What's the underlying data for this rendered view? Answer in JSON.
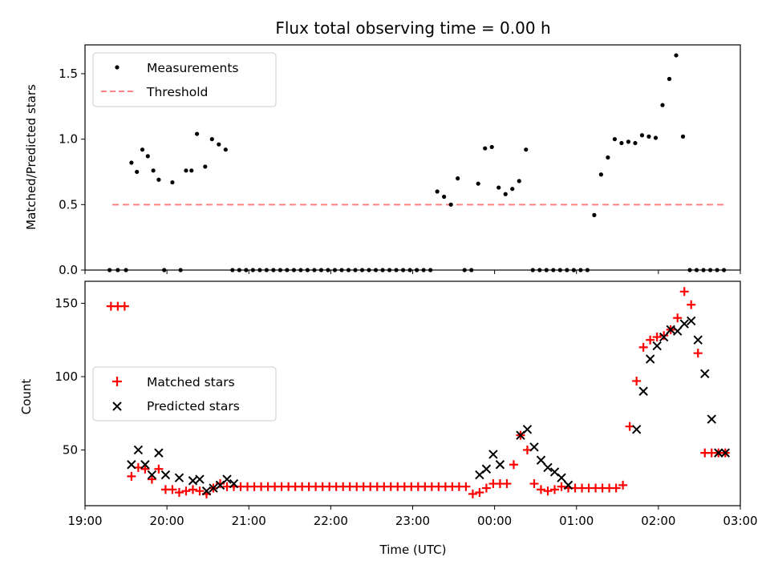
{
  "chart_data": [
    {
      "type": "scatter",
      "title": "Flux total observing time = 0.00 h",
      "xlabel": "",
      "ylabel": "Matched/Predicted stars",
      "xlim": [
        "19:00",
        "03:00"
      ],
      "ylim": [
        0.0,
        1.72
      ],
      "x_ticks": [
        "19:00",
        "20:00",
        "21:00",
        "22:00",
        "23:00",
        "00:00",
        "01:00",
        "02:00",
        "03:00"
      ],
      "y_ticks": [
        "0.0",
        "0.5",
        "1.0",
        "1.5"
      ],
      "legend": {
        "position": "upper-left"
      },
      "series": [
        {
          "name": "Measurements",
          "color": "#000000",
          "marker": "dot",
          "x": [
            "19:18",
            "19:24",
            "19:30",
            "19:34",
            "19:38",
            "19:42",
            "19:46",
            "19:50",
            "19:54",
            "19:58",
            "20:04",
            "20:10",
            "20:14",
            "20:18",
            "20:22",
            "20:28",
            "20:33",
            "20:38",
            "20:43",
            "20:48",
            "20:53",
            "20:58",
            "21:03",
            "21:08",
            "21:13",
            "21:18",
            "21:23",
            "21:28",
            "21:33",
            "21:38",
            "21:43",
            "21:48",
            "21:53",
            "21:58",
            "22:03",
            "22:08",
            "22:13",
            "22:18",
            "22:23",
            "22:28",
            "22:33",
            "22:38",
            "22:43",
            "22:48",
            "22:53",
            "22:58",
            "23:03",
            "23:08",
            "23:13",
            "23:18",
            "23:23",
            "23:28",
            "23:33",
            "23:38",
            "23:43",
            "23:48",
            "23:53",
            "23:58",
            "00:03",
            "00:08",
            "00:13",
            "00:18",
            "00:23",
            "00:28",
            "00:33",
            "00:38",
            "00:43",
            "00:48",
            "00:53",
            "00:58",
            "01:03",
            "01:08",
            "01:13",
            "01:18",
            "01:23",
            "01:28",
            "01:33",
            "01:38",
            "01:43",
            "01:48",
            "01:53",
            "01:58",
            "02:03",
            "02:08",
            "02:13",
            "02:18",
            "02:23",
            "02:28",
            "02:33",
            "02:38",
            "02:43",
            "02:48"
          ],
          "y": [
            0,
            0,
            0,
            0.82,
            0.75,
            0.92,
            0.87,
            0.76,
            0.69,
            0,
            0.67,
            0,
            0.76,
            0.76,
            1.04,
            0.79,
            1.0,
            0.96,
            0.92,
            0,
            0,
            0,
            0,
            0,
            0,
            0,
            0,
            0,
            0,
            0,
            0,
            0,
            0,
            0,
            0,
            0,
            0,
            0,
            0,
            0,
            0,
            0,
            0,
            0,
            0,
            0,
            0,
            0,
            0,
            0.6,
            0.56,
            0.5,
            0.7,
            0,
            0,
            0.66,
            0.93,
            0.94,
            0.63,
            0.58,
            0.62,
            0.68,
            0.92,
            0,
            0,
            0,
            0,
            0,
            0,
            0,
            0,
            0,
            0.42,
            0.73,
            0.86,
            1.0,
            0.97,
            0.98,
            0.97,
            1.03,
            1.02,
            1.01,
            1.26,
            1.46,
            1.64,
            1.02,
            0,
            0,
            0,
            0,
            0,
            0
          ]
        },
        {
          "name": "Threshold",
          "color": "#ff8080",
          "style": "dashed",
          "x": [
            "19:20",
            "02:48"
          ],
          "y": [
            0.5,
            0.5
          ]
        }
      ]
    },
    {
      "type": "scatter",
      "title": "",
      "xlabel": "Time (UTC)",
      "ylabel": "Count",
      "xlim": [
        "19:00",
        "03:00"
      ],
      "ylim": [
        12,
        165
      ],
      "x_ticks": [
        "19:00",
        "20:00",
        "21:00",
        "22:00",
        "23:00",
        "00:00",
        "01:00",
        "02:00",
        "03:00"
      ],
      "y_ticks": [
        "50",
        "100",
        "150"
      ],
      "legend": {
        "position": "center-left"
      },
      "series": [
        {
          "name": "Matched stars",
          "color": "#ff0000",
          "marker": "plus",
          "x": [
            "19:19",
            "19:24",
            "19:29",
            "19:34",
            "19:39",
            "19:44",
            "19:49",
            "19:54",
            "19:59",
            "20:04",
            "20:09",
            "20:14",
            "20:19",
            "20:24",
            "20:29",
            "20:34",
            "20:39",
            "20:44",
            "20:49",
            "20:54",
            "20:59",
            "21:04",
            "21:09",
            "21:14",
            "21:19",
            "21:24",
            "21:29",
            "21:34",
            "21:39",
            "21:44",
            "21:49",
            "21:54",
            "21:59",
            "22:04",
            "22:09",
            "22:14",
            "22:19",
            "22:24",
            "22:29",
            "22:34",
            "22:39",
            "22:44",
            "22:49",
            "22:54",
            "22:59",
            "23:04",
            "23:09",
            "23:14",
            "23:19",
            "23:24",
            "23:29",
            "23:34",
            "23:39",
            "23:44",
            "23:49",
            "23:54",
            "23:59",
            "00:04",
            "00:09",
            "00:14",
            "00:19",
            "00:24",
            "00:29",
            "00:34",
            "00:39",
            "00:44",
            "00:49",
            "00:54",
            "00:59",
            "01:04",
            "01:09",
            "01:14",
            "01:19",
            "01:24",
            "01:29",
            "01:34",
            "01:39",
            "01:44",
            "01:49",
            "01:54",
            "01:59",
            "02:04",
            "02:09",
            "02:14",
            "02:19",
            "02:24",
            "02:29",
            "02:34",
            "02:39",
            "02:44",
            "02:49"
          ],
          "y": [
            148,
            148,
            148,
            32,
            38,
            37,
            30,
            37,
            23,
            23,
            21,
            22,
            23,
            22,
            20,
            24,
            27,
            25,
            25,
            25,
            25,
            25,
            25,
            25,
            25,
            25,
            25,
            25,
            25,
            25,
            25,
            25,
            25,
            25,
            25,
            25,
            25,
            25,
            25,
            25,
            25,
            25,
            25,
            25,
            25,
            25,
            25,
            25,
            25,
            25,
            25,
            25,
            25,
            20,
            21,
            24,
            27,
            27,
            27,
            40,
            60,
            50,
            27,
            23,
            22,
            23,
            25,
            24,
            24,
            24,
            24,
            24,
            24,
            24,
            24,
            26,
            66,
            97,
            120,
            125,
            127,
            128,
            132,
            140,
            158,
            149,
            116,
            48,
            48,
            48,
            48
          ]
        },
        {
          "name": "Predicted stars",
          "color": "#000000",
          "marker": "x",
          "x": [
            "19:34",
            "19:39",
            "19:44",
            "19:49",
            "19:54",
            "19:59",
            "20:09",
            "20:19",
            "20:24",
            "20:29",
            "20:34",
            "20:39",
            "20:44",
            "20:49",
            "23:49",
            "23:54",
            "23:59",
            "00:04",
            "00:19",
            "00:24",
            "00:29",
            "00:34",
            "00:39",
            "00:44",
            "00:49",
            "00:54",
            "01:44",
            "01:49",
            "01:54",
            "01:59",
            "02:04",
            "02:09",
            "02:14",
            "02:19",
            "02:24",
            "02:29",
            "02:34",
            "02:39",
            "02:44",
            "02:49"
          ],
          "y": [
            40,
            50,
            40,
            33,
            48,
            33,
            31,
            29,
            30,
            22,
            24,
            26,
            30,
            27,
            33,
            37,
            47,
            40,
            60,
            64,
            52,
            43,
            38,
            35,
            31,
            26,
            64,
            90,
            112,
            121,
            127,
            132,
            131,
            136,
            138,
            125,
            102,
            71,
            48,
            48
          ]
        }
      ]
    }
  ]
}
